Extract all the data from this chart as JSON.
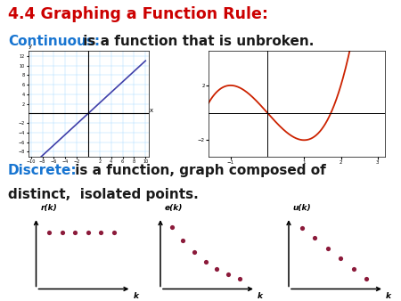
{
  "title": "4.4 Graphing a Function Rule:",
  "title_color": "#cc0000",
  "continuous_label": "Continuous:",
  "continuous_color": "#1875d1",
  "continuous_text": " is a function that is unbroken.",
  "discrete_label": "Discrete:",
  "discrete_color": "#1875d1",
  "discrete_text1": " is a function, graph composed of",
  "discrete_text2": "distinct,  isolated points.",
  "background_color": "#ffffff",
  "dot_color": "#8b1a3a",
  "line_color_blue": "#4040aa",
  "line_color_red": "#cc2200",
  "graph1_label": "r(k)",
  "graph2_label": "e(k)",
  "graph3_label": "u(k)",
  "k_label": "k",
  "text_color": "#1a1a1a"
}
